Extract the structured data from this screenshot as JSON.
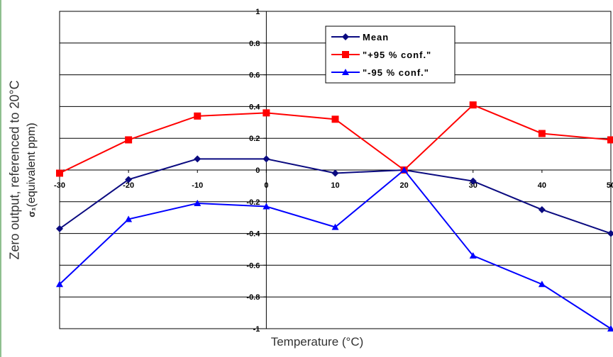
{
  "chart_data": {
    "type": "line",
    "title": "",
    "xlabel": "Temperature (°C)",
    "ylabel": "Zero output, referenced to 20°C",
    "ylabel_symbol": "σ₁",
    "ylabel_unit": "(equivalent ppm)",
    "x": [
      -30,
      -20,
      -10,
      0,
      10,
      20,
      30,
      40,
      50
    ],
    "x_tick_labels": [
      "-30",
      "-20",
      "-10",
      "0",
      "10",
      "20",
      "30",
      "40",
      "50"
    ],
    "y_tick_labels": [
      "-1",
      "-0.8",
      "-0.6",
      "-0.4",
      "-0.2",
      "0",
      "0.2",
      "0.4",
      "0.6",
      "0.8",
      "1"
    ],
    "xlim": [
      -30,
      50
    ],
    "ylim": [
      -1,
      1
    ],
    "grid": "horizontal",
    "legend_position": "top-right",
    "series": [
      {
        "name": "Mean",
        "color": "#0a0a80",
        "marker": "diamond",
        "values": [
          -0.37,
          -0.06,
          0.07,
          0.07,
          -0.02,
          0.0,
          -0.07,
          -0.25,
          -0.4
        ]
      },
      {
        "name": "\"+95 % conf.\"",
        "color": "#ff0000",
        "marker": "square",
        "values": [
          -0.02,
          0.19,
          0.34,
          0.36,
          0.32,
          0.0,
          0.41,
          0.23,
          0.19
        ]
      },
      {
        "name": "\"-95 % conf.\"",
        "color": "#0000ff",
        "marker": "triangle",
        "values": [
          -0.72,
          -0.31,
          -0.21,
          -0.23,
          -0.36,
          0.0,
          -0.54,
          -0.72,
          -1.0
        ]
      }
    ]
  }
}
